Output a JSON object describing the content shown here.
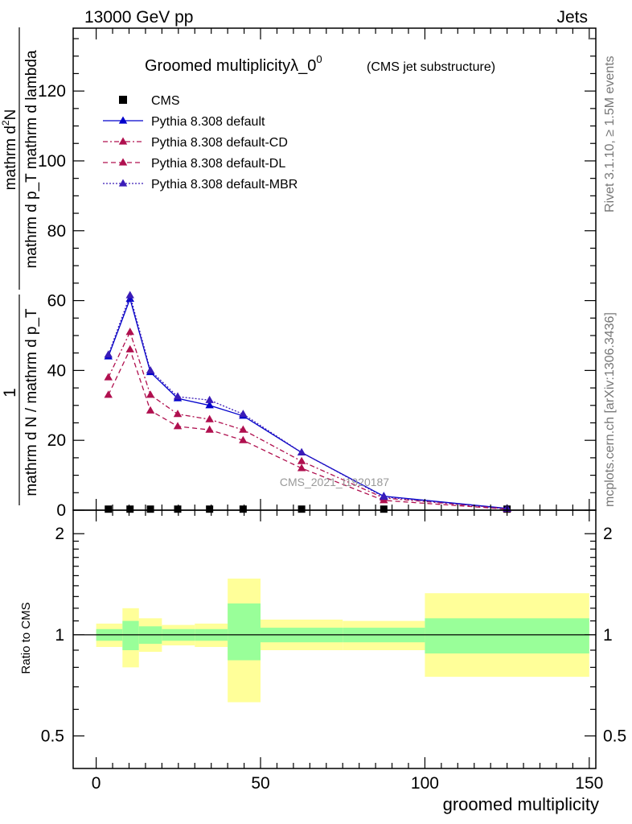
{
  "header": {
    "energy_label": "13000 GeV pp",
    "category_label": "Jets"
  },
  "side_labels": {
    "rivet": "Rivet 3.1.10, ≥ 1.5M events",
    "mcplots": "mcplots.cern.ch [arXiv:1306.3436]"
  },
  "chart_data": {
    "type": "line",
    "title": "Groomed multiplicityλ_0",
    "title_superscript": "0",
    "subtitle": "(CMS jet substructure)",
    "watermark": "CMS_2021_I1920187",
    "xlabel": "groomed multiplicity",
    "ylabel_numerator": "mathrm d²N",
    "ylabel_numerator_base": "mathrm d",
    "ylabel_numerator_sup": "2",
    "ylabel_numerator_rest": "N",
    "ylabel_denominator": "mathrm d p_T mathrm d lambda",
    "ylabel_prefix_one": "1",
    "ylabel_prefix_den": "mathrm d N / mathrm d p_T",
    "ratio_ylabel": "Ratio to CMS",
    "xlim": [
      -7,
      152
    ],
    "ylim": [
      0,
      138
    ],
    "ratio_ylim": [
      0.4,
      2.35
    ],
    "x_ticks": [
      0,
      50,
      100,
      150
    ],
    "y_ticks": [
      0,
      20,
      40,
      60,
      80,
      100,
      120
    ],
    "ratio_ticks": [
      0.5,
      1,
      2
    ],
    "ratio_tick_labels": [
      "0.5",
      "1",
      "2"
    ],
    "x_edges": [
      0,
      8,
      13,
      20,
      30,
      40,
      50,
      75,
      100,
      150
    ],
    "x_centers": [
      3.7,
      10.3,
      16.5,
      24.8,
      34.5,
      44.7,
      62.5,
      87.5,
      125
    ],
    "series": [
      {
        "name": "CMS",
        "role": "data",
        "marker": "square",
        "color": "#000000",
        "values": [
          0.3,
          0.3,
          0.3,
          0.3,
          0.3,
          0.3,
          0.3,
          0.3,
          0.3
        ]
      },
      {
        "name": "Pythia 8.308 default",
        "marker": "triangle",
        "color": "#0000cc",
        "dash": "",
        "values": [
          44.0,
          60.5,
          39.5,
          32.0,
          30.0,
          27.0,
          16.5,
          4.0,
          0.5
        ]
      },
      {
        "name": "Pythia 8.308 default-CD",
        "marker": "triangle",
        "color": "#b0104f",
        "dash": "6,3,2,3",
        "values": [
          38.0,
          51.0,
          33.0,
          27.5,
          26.0,
          23.0,
          14.0,
          3.5,
          0.4
        ]
      },
      {
        "name": "Pythia 8.308 default-DL",
        "marker": "triangle",
        "color": "#b0104f",
        "dash": "6,4",
        "values": [
          33.0,
          46.0,
          28.5,
          24.0,
          23.0,
          20.0,
          12.0,
          2.8,
          0.3
        ]
      },
      {
        "name": "Pythia 8.308 default-MBR",
        "marker": "triangle",
        "color": "#3a1cb8",
        "dash": "2,2",
        "values": [
          44.5,
          61.5,
          40.0,
          32.5,
          31.5,
          27.5,
          16.5,
          3.8,
          0.4
        ]
      }
    ],
    "ratio_bands": {
      "stat_color": "#99ff99",
      "total_color": "#ffff99",
      "stat_low": [
        0.96,
        0.9,
        0.94,
        0.96,
        0.96,
        0.84,
        0.95,
        0.95,
        0.88
      ],
      "stat_high": [
        1.04,
        1.1,
        1.06,
        1.04,
        1.04,
        1.24,
        1.05,
        1.05,
        1.12
      ],
      "total_low": [
        0.92,
        0.8,
        0.89,
        0.93,
        0.92,
        0.63,
        0.9,
        0.9,
        0.75
      ],
      "total_high": [
        1.08,
        1.2,
        1.12,
        1.07,
        1.08,
        1.47,
        1.11,
        1.1,
        1.33
      ]
    },
    "legend_position": "top-left",
    "grid": false
  }
}
